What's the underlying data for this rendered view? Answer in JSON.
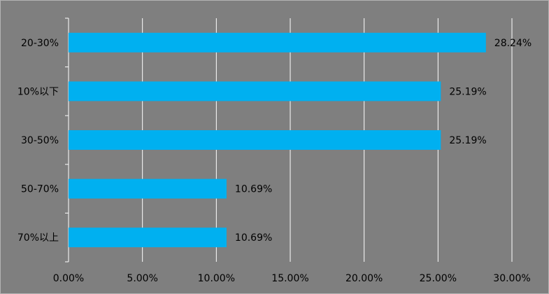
{
  "chart_data": {
    "type": "bar",
    "orientation": "horizontal",
    "categories": [
      "20-30%",
      "10%以下",
      "30-50%",
      "50-70%",
      "70%以上"
    ],
    "values": [
      28.24,
      25.19,
      25.19,
      10.69,
      10.69
    ],
    "data_labels": [
      "28.24%",
      "25.19%",
      "25.19%",
      "10.69%",
      "10.69%"
    ],
    "xlim": [
      0,
      30
    ],
    "x_ticks": [
      0,
      5,
      10,
      15,
      20,
      25,
      30
    ],
    "x_tick_labels": [
      "0.00%",
      "5.00%",
      "10.00%",
      "15.00%",
      "20.00%",
      "25.00%",
      "30.00%"
    ],
    "grid": "vertical",
    "legend": "none",
    "colors": {
      "bar": "#00b0f0",
      "background": "#7f7f7f",
      "gridline": "#ffffff",
      "text": "#000000"
    }
  }
}
